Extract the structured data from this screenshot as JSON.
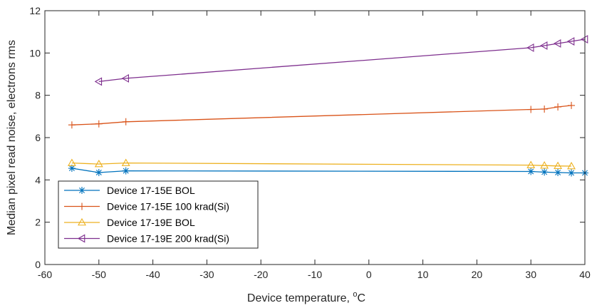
{
  "chart_data": {
    "type": "line",
    "xlabel": "Device temperature, °C",
    "xlabel_main": "Device temperature, ",
    "xlabel_sup": "o",
    "xlabel_unit": "C",
    "ylabel": "Median pixel read noise, electrons rms",
    "xlim": [
      -60,
      40
    ],
    "ylim": [
      0,
      12
    ],
    "xticks": [
      -60,
      -50,
      -40,
      -30,
      -20,
      -10,
      0,
      10,
      20,
      30,
      40
    ],
    "yticks": [
      0,
      2,
      4,
      6,
      8,
      10,
      12
    ],
    "grid": false,
    "legend_position": "bottom-left",
    "series": [
      {
        "name": "Device 17-15E BOL",
        "color": "#0072BD",
        "marker": "asterisk",
        "points": [
          [
            -55,
            4.55
          ],
          [
            -50,
            4.35
          ],
          [
            -45,
            4.43
          ],
          [
            30,
            4.4
          ],
          [
            32.5,
            4.37
          ],
          [
            35,
            4.35
          ],
          [
            37.5,
            4.33
          ],
          [
            40,
            4.33
          ]
        ]
      },
      {
        "name": "Device 17-15E 100 krad(Si)",
        "color": "#D95319",
        "marker": "plus",
        "points": [
          [
            -55,
            6.6
          ],
          [
            -50,
            6.65
          ],
          [
            -45,
            6.75
          ],
          [
            30,
            7.33
          ],
          [
            32.5,
            7.35
          ],
          [
            35,
            7.45
          ],
          [
            37.5,
            7.52
          ]
        ]
      },
      {
        "name": "Device 17-19E BOL",
        "color": "#EDB120",
        "marker": "triangle-up",
        "points": [
          [
            -55,
            4.8
          ],
          [
            -50,
            4.75
          ],
          [
            -45,
            4.8
          ],
          [
            30,
            4.7
          ],
          [
            32.5,
            4.68
          ],
          [
            35,
            4.66
          ],
          [
            37.5,
            4.65
          ]
        ]
      },
      {
        "name": "Device 17-19E 200 krad(Si)",
        "color": "#7E2F8E",
        "marker": "triangle-left",
        "points": [
          [
            -50,
            8.65
          ],
          [
            -45,
            8.8
          ],
          [
            30,
            10.25
          ],
          [
            32.5,
            10.35
          ],
          [
            35,
            10.45
          ],
          [
            37.5,
            10.55
          ],
          [
            40,
            10.65
          ]
        ]
      }
    ]
  }
}
